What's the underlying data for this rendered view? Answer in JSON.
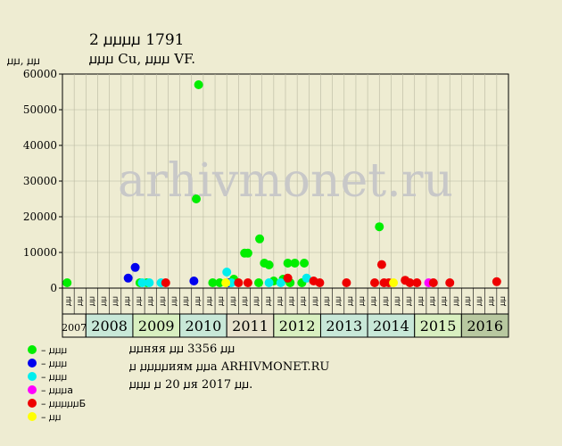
{
  "header": {
    "title": "2 ꙡꙡꙡꙡ 1791",
    "subtitle": "ꙡꙡꙡ Cu, ꙡꙡꙡ VF.",
    "y_unit": "ꙡꙡ, ꙡꙡ"
  },
  "watermark": "arhivmonet.ru",
  "legend": [
    {
      "color": "#00ee00",
      "label": "– ꙡꙡꙡ"
    },
    {
      "color": "#0000ee",
      "label": "– ꙡꙡꙡ"
    },
    {
      "color": "#00eeee",
      "label": "– ꙡꙡꙡ"
    },
    {
      "color": "#ff00ff",
      "label": "– ꙡꙡꙡа"
    },
    {
      "color": "#ee0000",
      "label": "– ꙡꙡꙡꙡꙡБ"
    },
    {
      "color": "#ffff00",
      "label": "– ꙡꙡ"
    }
  ],
  "footer": [
    "ꙡꙡняя ꙡꙡ 3356 ꙡꙡ",
    "ꙡ ꙡꙡꙡꙡиям ꙡꙡа ARHIVMONET.RU",
    "ꙡꙡꙡ ꙡ 20 ꙡя 2017 ꙡꙡ."
  ],
  "chart_data": {
    "type": "scatter",
    "ylim": [
      0,
      60000
    ],
    "yticks": [
      "0",
      "10000",
      "20000",
      "30000",
      "40000",
      "50000",
      "60000"
    ],
    "grid": true,
    "x_period_labels": [
      "ꙡꙡ",
      "ꙡꙡ"
    ],
    "years": [
      "2007",
      "2008",
      "2009",
      "2010",
      "2011",
      "2012",
      "2013",
      "2014",
      "2015",
      "2016"
    ],
    "x_range": [
      2007.5,
      2017.0
    ],
    "series": [
      {
        "color": "#00ee00",
        "points": [
          [
            2007.6,
            1500
          ],
          [
            2009.15,
            1500
          ],
          [
            2009.3,
            1500
          ],
          [
            2010.35,
            25000
          ],
          [
            2010.4,
            57000
          ],
          [
            2010.7,
            1500
          ],
          [
            2010.85,
            1500
          ],
          [
            2011.15,
            2500
          ],
          [
            2011.38,
            9800
          ],
          [
            2011.45,
            9800
          ],
          [
            2011.68,
            1500
          ],
          [
            2011.7,
            13800
          ],
          [
            2011.8,
            7000
          ],
          [
            2011.9,
            6500
          ],
          [
            2012.0,
            2000
          ],
          [
            2012.2,
            2500
          ],
          [
            2012.3,
            7000
          ],
          [
            2012.35,
            1500
          ],
          [
            2012.45,
            7000
          ],
          [
            2012.6,
            1500
          ],
          [
            2012.65,
            7000
          ],
          [
            2014.25,
            17200
          ]
        ]
      },
      {
        "color": "#0000ee",
        "points": [
          [
            2008.9,
            2800
          ],
          [
            2009.05,
            5800
          ],
          [
            2010.3,
            2000
          ],
          [
            2011.05,
            1500
          ]
        ]
      },
      {
        "color": "#00eeee",
        "points": [
          [
            2009.2,
            1500
          ],
          [
            2009.35,
            1500
          ],
          [
            2009.6,
            1500
          ],
          [
            2011.0,
            4500
          ],
          [
            2011.1,
            1500
          ],
          [
            2011.9,
            1500
          ],
          [
            2012.15,
            1500
          ],
          [
            2012.7,
            2800
          ]
        ]
      },
      {
        "color": "#ff00ff",
        "points": [
          [
            2015.3,
            1500
          ]
        ]
      },
      {
        "color": "#ee0000",
        "points": [
          [
            2009.7,
            1500
          ],
          [
            2011.25,
            1500
          ],
          [
            2011.45,
            1500
          ],
          [
            2012.3,
            2800
          ],
          [
            2012.85,
            2000
          ],
          [
            2012.98,
            1500
          ],
          [
            2013.55,
            1500
          ],
          [
            2014.15,
            1500
          ],
          [
            2014.3,
            6600
          ],
          [
            2014.35,
            1500
          ],
          [
            2014.45,
            1500
          ],
          [
            2014.8,
            2200
          ],
          [
            2014.9,
            1500
          ],
          [
            2015.05,
            1500
          ],
          [
            2015.4,
            1500
          ],
          [
            2015.75,
            1500
          ],
          [
            2016.75,
            1800
          ]
        ]
      },
      {
        "color": "#ffff00",
        "points": [
          [
            2010.98,
            1500
          ],
          [
            2014.55,
            1500
          ]
        ]
      }
    ]
  }
}
